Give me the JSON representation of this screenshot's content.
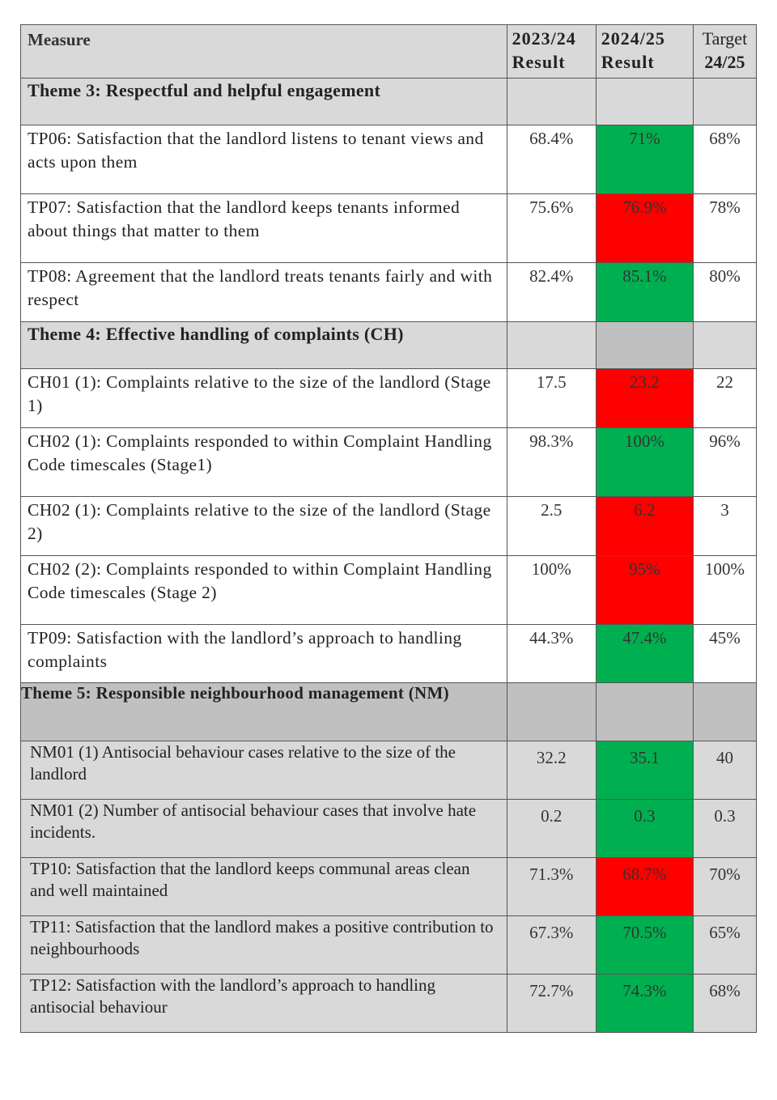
{
  "header": {
    "measure": "Measure",
    "col_2023_year": "2023/24",
    "col_2023_sub": "Result",
    "col_2024_year": "2024/25",
    "col_2024_sub": "Result",
    "col_target_a": "Target",
    "col_target_b": "24/25"
  },
  "themes": {
    "theme3": "Theme 3: Respectful and helpful engagement",
    "theme4": "Theme 4: Effective handling of complaints (CH)",
    "theme5": "Theme 5: Responsible neighbourhood management (NM)"
  },
  "rows": [
    {
      "measure": "TP06: Satisfaction that the landlord listens to tenant views and acts upon them",
      "r2324": "68.4%",
      "r2425": "71%",
      "target": "68%",
      "status": "green"
    },
    {
      "measure": "TP07: Satisfaction that the landlord keeps tenants informed about things that matter to them",
      "r2324": "75.6%",
      "r2425": "76.9%",
      "target": "78%",
      "status": "red"
    },
    {
      "measure": "TP08: Agreement that the landlord treats tenants fairly and with respect",
      "r2324": "82.4%",
      "r2425": "85.1%",
      "target": "80%",
      "status": "green"
    },
    {
      "measure": "CH01 (1): Complaints relative to the size of the landlord (Stage 1)",
      "r2324": "17.5",
      "r2425": "23.2",
      "target": "22",
      "status": "red"
    },
    {
      "measure": "CH02 (1): Complaints responded to within Complaint Handling Code timescales (Stage1)",
      "r2324": "98.3%",
      "r2425": "100%",
      "target": "96%",
      "status": "green"
    },
    {
      "measure": "CH02 (1): Complaints relative to the size of the landlord (Stage 2)",
      "r2324": "2.5",
      "r2425": "6.2",
      "target": "3",
      "status": "red"
    },
    {
      "measure": "CH02 (2): Complaints responded to within Complaint Handling Code timescales (Stage 2)",
      "r2324": "100%",
      "r2425": "95%",
      "target": "100%",
      "status": "red"
    },
    {
      "measure": "TP09: Satisfaction with the landlord’s approach to handling complaints",
      "r2324": "44.3%",
      "r2425": "47.4%",
      "target": "45%",
      "status": "green"
    },
    {
      "measure": "NM01 (1) Antisocial behaviour cases relative to the size of the landlord",
      "r2324": "32.2",
      "r2425": "35.1",
      "target": "40",
      "status": "green"
    },
    {
      "measure": "NM01 (2) Number of antisocial behaviour cases that involve hate incidents.",
      "r2324": "0.2",
      "r2425": "0.3",
      "target": "0.3",
      "status": "green"
    },
    {
      "measure": "TP10: Satisfaction that the landlord keeps communal areas clean and well maintained",
      "r2324": "71.3%",
      "r2425": "68.7%",
      "target": "70%",
      "status": "red"
    },
    {
      "measure": "TP11: Satisfaction that the landlord makes a positive contribution to neighbourhoods",
      "r2324": "67.3%",
      "r2425": "70.5%",
      "target": "65%",
      "status": "green"
    },
    {
      "measure": "TP12: Satisfaction with the landlord’s approach to handling antisocial behaviour",
      "r2324": "72.7%",
      "r2425": "74.3%",
      "target": "68%",
      "status": "green"
    }
  ],
  "colors": {
    "green": "#00b050",
    "red": "#ff0000",
    "header_grey": "#d9d9d9",
    "dark_grey": "#c0c0c0"
  }
}
